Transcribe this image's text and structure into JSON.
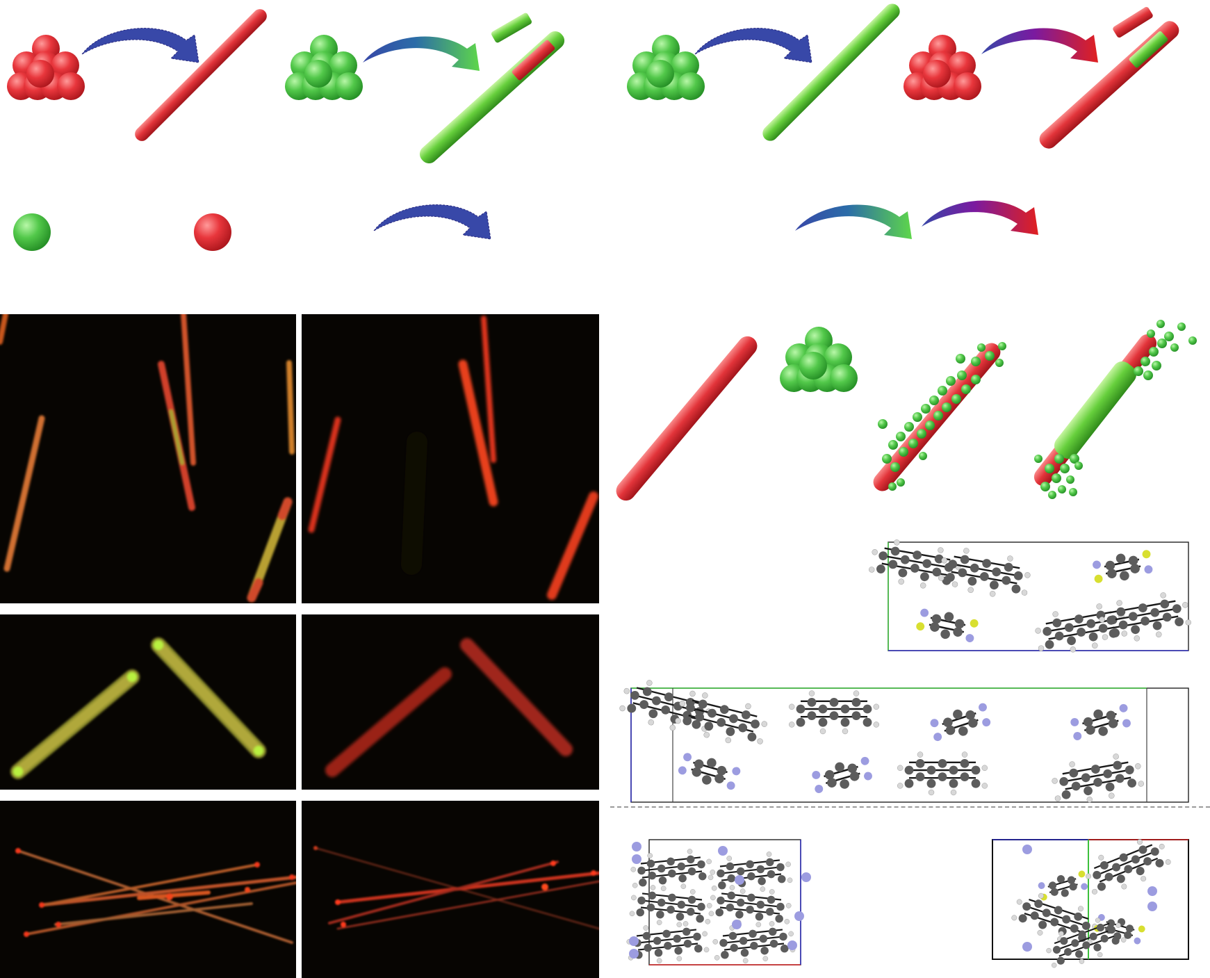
{
  "figure": {
    "colors": {
      "red_component": "#e0343a",
      "green_component": "#4ec94a",
      "arrow_blue": "#3848a8",
      "arrow_purple": "#7a1aa0",
      "arrow_red": "#e02020",
      "microscope_background": "#070502",
      "atom_carbon": "#5c5c5c",
      "atom_hydrogen": "#d8d8d8",
      "atom_nitrogen": "#9c9ce0",
      "atom_sulfur": "#d8df30",
      "cell_green": "#3cc03c",
      "cell_blue": "#2b2bb8",
      "cell_red": "#d02020"
    },
    "panels": {
      "scheme_top": [
        "red-cluster-to-red-rod",
        "green-cluster-to-core-shell-rod",
        "green-cluster-to-green-rod",
        "red-cluster-to-core-shell-rod"
      ],
      "legend": [
        "green-molecule",
        "red-molecule",
        "nucleation-arrow",
        "epitaxial-growth-arrows"
      ],
      "micrographs": [
        "row-1-left",
        "row-1-right",
        "row-2-left",
        "row-2-right",
        "row-3-left",
        "row-3-right"
      ],
      "growth_scheme": [
        "red-rod",
        "green-cluster",
        "nucleated-rod",
        "overgrown-rod"
      ],
      "crystal_structures": [
        "packing-a",
        "packing-b",
        "packing-c",
        "packing-d"
      ]
    }
  }
}
